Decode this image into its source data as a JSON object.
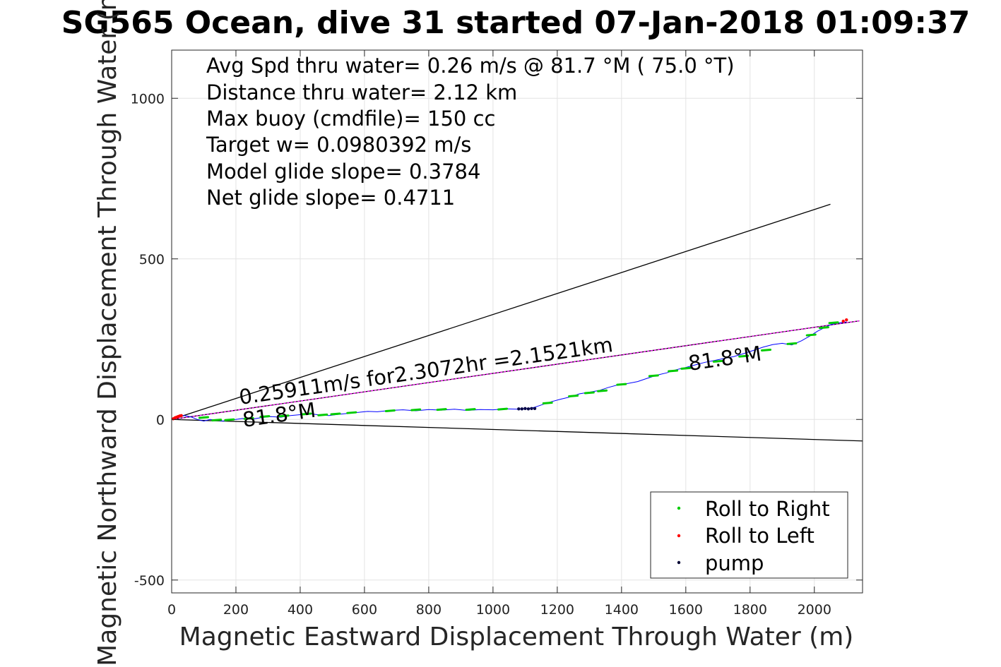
{
  "chart_data": {
    "type": "line",
    "title": "SG565 Ocean, dive 31 started 07-Jan-2018 01:09:37",
    "xlabel": "Magnetic Eastward Displacement Through Water (m)",
    "ylabel": "Magnetic Northward Displacement Through Water (m)",
    "xlim": [
      0,
      2150
    ],
    "ylim": [
      -540,
      1150
    ],
    "xticks": [
      0,
      200,
      400,
      600,
      800,
      1000,
      1200,
      1400,
      1600,
      1800,
      2000
    ],
    "yticks": [
      -500,
      0,
      500,
      1000
    ],
    "grid": true,
    "annotations": [
      "Avg Spd thru water=  0.26 m/s @  81.7 °M ( 75.0 °T)",
      "Distance thru water=  2.12 km",
      "Max buoy (cmdfile)= 150 cc",
      "Target w= 0.0980392 m/s",
      "Model glide slope= 0.3784",
      "Net glide slope= 0.4711"
    ],
    "line_labels": {
      "speed": "0.25911m/s for2.3072hr =2.1521km",
      "heading_start": "81.8°M",
      "heading_end": "81.8°M"
    },
    "series": [
      {
        "name": "track",
        "color": "#0000ff",
        "x": [
          0,
          20,
          40,
          60,
          80,
          100,
          120,
          140,
          160,
          180,
          200,
          220,
          250,
          280,
          310,
          340,
          370,
          400,
          430,
          460,
          490,
          520,
          550,
          580,
          610,
          640,
          680,
          720,
          760,
          800,
          840,
          880,
          920,
          960,
          1000,
          1040,
          1080,
          1110,
          1130,
          1150,
          1180,
          1210,
          1240,
          1270,
          1300,
          1330,
          1360,
          1390,
          1420,
          1450,
          1480,
          1510,
          1540,
          1570,
          1600,
          1630,
          1660,
          1690,
          1720,
          1750,
          1780,
          1810,
          1840,
          1870,
          1900,
          1930,
          1960,
          1990,
          2010,
          2030,
          2050,
          2070,
          2090,
          2100
        ],
        "y": [
          0,
          8,
          12,
          8,
          0,
          -5,
          0,
          -3,
          -5,
          -2,
          0,
          3,
          1,
          6,
          9,
          7,
          12,
          15,
          18,
          14,
          12,
          16,
          19,
          22,
          25,
          24,
          28,
          30,
          27,
          31,
          29,
          32,
          28,
          31,
          30,
          33,
          32,
          34,
          38,
          45,
          55,
          63,
          70,
          80,
          85,
          90,
          100,
          108,
          112,
          118,
          128,
          138,
          145,
          155,
          162,
          170,
          178,
          184,
          190,
          196,
          205,
          215,
          225,
          233,
          237,
          232,
          245,
          262,
          275,
          285,
          295,
          300,
          302,
          304
        ]
      },
      {
        "name": "Roll to Right",
        "color": "#00cc00",
        "x": [
          100,
          140,
          180,
          240,
          290,
          350,
          420,
          470,
          510,
          560,
          680,
          760,
          840,
          930,
          1030,
          1170,
          1250,
          1300,
          1340,
          1400,
          1500,
          1560,
          1600,
          1700,
          1780,
          1850,
          1930,
          1990,
          2030,
          2060
        ],
        "y": [
          5,
          -3,
          -2,
          2,
          8,
          10,
          16,
          13,
          16,
          20,
          26,
          29,
          30,
          30,
          31,
          50,
          72,
          82,
          88,
          108,
          135,
          150,
          158,
          180,
          196,
          215,
          235,
          262,
          285,
          300
        ]
      },
      {
        "name": "Roll to Left",
        "color": "#ff0000",
        "x": [
          5,
          10,
          15,
          20,
          25,
          30,
          2090,
          2100
        ],
        "y": [
          2,
          5,
          7,
          9,
          11,
          12,
          306,
          310
        ]
      },
      {
        "name": "pump",
        "color": "#000044",
        "x": [
          1080,
          1090,
          1100,
          1110,
          1120,
          1130
        ],
        "y": [
          33,
          33,
          34,
          33,
          34,
          34
        ]
      }
    ],
    "reference_lines": [
      {
        "color": "#000000",
        "x": [
          0,
          2050
        ],
        "y": [
          0,
          670
        ]
      },
      {
        "color": "#000000",
        "x": [
          0,
          2150
        ],
        "y": [
          0,
          -67
        ]
      },
      {
        "color": "#000000",
        "x": [
          0,
          2140
        ],
        "y": [
          0,
          307
        ]
      },
      {
        "color": "#ff00ff",
        "x": [
          0,
          2140
        ],
        "y": [
          0,
          307
        ]
      }
    ],
    "legend": {
      "placement": "bottom-right",
      "entries": [
        "Roll to Right",
        "Roll to Left",
        "pump"
      ]
    }
  }
}
